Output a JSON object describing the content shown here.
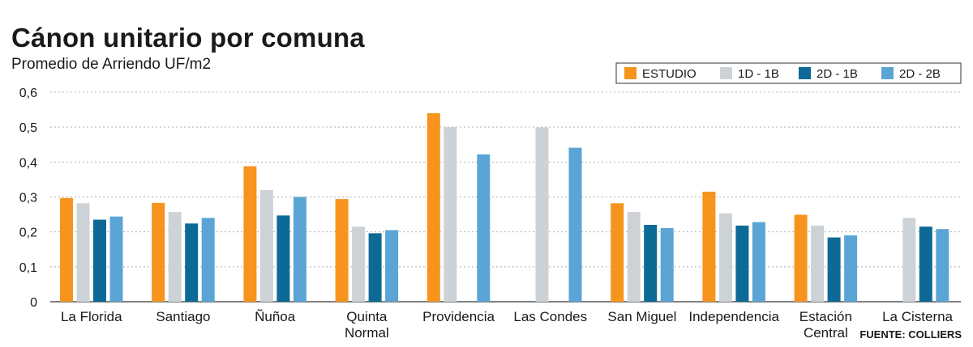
{
  "chart_data": {
    "type": "bar",
    "title": "Cánon unitario por comuna",
    "subtitle": "Promedio de Arriendo UF/m2",
    "source": "FUENTE: COLLIERS",
    "categories": [
      [
        "La Florida"
      ],
      [
        "Santiago"
      ],
      [
        "Ñuñoa"
      ],
      [
        "Quinta",
        "Normal"
      ],
      [
        "Providencia"
      ],
      [
        "Las Condes"
      ],
      [
        "San Miguel"
      ],
      [
        "Independencia"
      ],
      [
        "Estación",
        "Central"
      ],
      [
        "La Cisterna"
      ]
    ],
    "series": [
      {
        "name": "ESTUDIO",
        "color": "#f7941d",
        "values": [
          0.297,
          0.283,
          0.388,
          0.294,
          0.54,
          null,
          0.282,
          0.315,
          0.249,
          null
        ]
      },
      {
        "name": "1D - 1B",
        "color": "#cdd2d6",
        "values": [
          0.282,
          0.257,
          0.32,
          0.215,
          0.5,
          0.499,
          0.257,
          0.253,
          0.218,
          0.24
        ]
      },
      {
        "name": "2D - 1B",
        "color": "#0d6a96",
        "values": [
          0.235,
          0.224,
          0.247,
          0.196,
          null,
          null,
          0.22,
          0.218,
          0.184,
          0.215
        ]
      },
      {
        "name": "2D - 2B",
        "color": "#5aa5d6",
        "values": [
          0.244,
          0.24,
          0.3,
          0.205,
          0.422,
          0.441,
          0.211,
          0.228,
          0.19,
          0.208
        ]
      }
    ],
    "yticks": [
      "0",
      "0,1",
      "0,2",
      "0,3",
      "0,4",
      "0,5",
      "0,6"
    ],
    "ylim": [
      0,
      0.6
    ],
    "grid": true,
    "legend_position": "top-right"
  }
}
